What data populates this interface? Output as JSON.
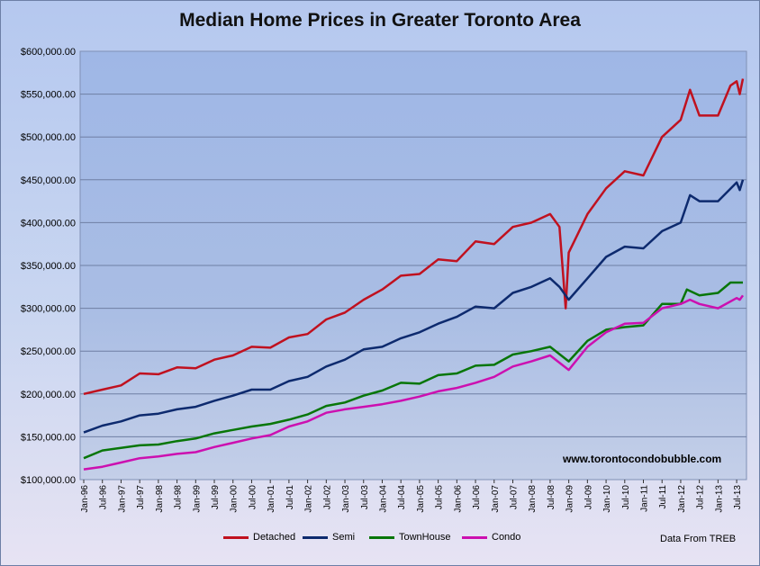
{
  "chart_data": {
    "type": "line",
    "title": "Median Home Prices in Greater Toronto Area",
    "xlabel": "",
    "ylabel": "",
    "ylim": [
      100000,
      600000
    ],
    "y_ticks": [
      "$100,000.00",
      "$150,000.00",
      "$200,000.00",
      "$250,000.00",
      "$300,000.00",
      "$350,000.00",
      "$400,000.00",
      "$450,000.00",
      "$500,000.00",
      "$550,000.00",
      "$600,000.00"
    ],
    "x_ticks": [
      "Jan-96",
      "Jul-96",
      "Jan-97",
      "Jul-97",
      "Jan-98",
      "Jul-98",
      "Jan-99",
      "Jul-99",
      "Jan-00",
      "Jul-00",
      "Jan-01",
      "Jul-01",
      "Jan-02",
      "Jul-02",
      "Jan-03",
      "Jul-03",
      "Jan-04",
      "Jul-04",
      "Jan-05",
      "Jul-05",
      "Jan-06",
      "Jul-06",
      "Jan-07",
      "Jul-07",
      "Jan-08",
      "Jul-08",
      "Jan-09",
      "Jul-09",
      "Jan-10",
      "Jul-10",
      "Jan-11",
      "Jul-11",
      "Jan-12",
      "Jul-12",
      "Jan-13",
      "Jul-13"
    ],
    "x_range": [
      "Jan-96",
      "Sep-13"
    ],
    "grid": "horizontal",
    "legend_position": "bottom",
    "series": [
      {
        "name": "Detached",
        "color": "#c0111f",
        "points": [
          [
            "Jan-96",
            200000
          ],
          [
            "Jul-96",
            205000
          ],
          [
            "Jan-97",
            210000
          ],
          [
            "Jul-97",
            224000
          ],
          [
            "Jan-98",
            223000
          ],
          [
            "Jul-98",
            231000
          ],
          [
            "Jan-99",
            230000
          ],
          [
            "Jul-99",
            240000
          ],
          [
            "Jan-00",
            245000
          ],
          [
            "Jul-00",
            255000
          ],
          [
            "Jan-01",
            254000
          ],
          [
            "Jul-01",
            266000
          ],
          [
            "Jan-02",
            270000
          ],
          [
            "Jul-02",
            287000
          ],
          [
            "Jan-03",
            295000
          ],
          [
            "Jul-03",
            310000
          ],
          [
            "Jan-04",
            322000
          ],
          [
            "Jul-04",
            338000
          ],
          [
            "Jan-05",
            340000
          ],
          [
            "Jul-05",
            357000
          ],
          [
            "Jan-06",
            355000
          ],
          [
            "Jul-06",
            378000
          ],
          [
            "Jan-07",
            375000
          ],
          [
            "Jul-07",
            395000
          ],
          [
            "Jan-08",
            400000
          ],
          [
            "Jul-08",
            410000
          ],
          [
            "Oct-08",
            395000
          ],
          [
            "Dec-08",
            300000
          ],
          [
            "Jan-09",
            365000
          ],
          [
            "Jul-09",
            410000
          ],
          [
            "Jan-10",
            440000
          ],
          [
            "Jul-10",
            460000
          ],
          [
            "Jan-11",
            455000
          ],
          [
            "Jul-11",
            500000
          ],
          [
            "Jan-12",
            520000
          ],
          [
            "Apr-12",
            555000
          ],
          [
            "Jul-12",
            525000
          ],
          [
            "Jan-13",
            525000
          ],
          [
            "May-13",
            560000
          ],
          [
            "Jul-13",
            565000
          ],
          [
            "Aug-13",
            550000
          ],
          [
            "Sep-13",
            568000
          ]
        ]
      },
      {
        "name": "Semi",
        "color": "#0d2a6e",
        "points": [
          [
            "Jan-96",
            155000
          ],
          [
            "Jul-96",
            163000
          ],
          [
            "Jan-97",
            168000
          ],
          [
            "Jul-97",
            175000
          ],
          [
            "Jan-98",
            177000
          ],
          [
            "Jul-98",
            182000
          ],
          [
            "Jan-99",
            185000
          ],
          [
            "Jul-99",
            192000
          ],
          [
            "Jan-00",
            198000
          ],
          [
            "Jul-00",
            205000
          ],
          [
            "Jan-01",
            205000
          ],
          [
            "Jul-01",
            215000
          ],
          [
            "Jan-02",
            220000
          ],
          [
            "Jul-02",
            232000
          ],
          [
            "Jan-03",
            240000
          ],
          [
            "Jul-03",
            252000
          ],
          [
            "Jan-04",
            255000
          ],
          [
            "Jul-04",
            265000
          ],
          [
            "Jan-05",
            272000
          ],
          [
            "Jul-05",
            282000
          ],
          [
            "Jan-06",
            290000
          ],
          [
            "Jul-06",
            302000
          ],
          [
            "Jan-07",
            300000
          ],
          [
            "Jul-07",
            318000
          ],
          [
            "Jan-08",
            325000
          ],
          [
            "Jul-08",
            335000
          ],
          [
            "Oct-08",
            325000
          ],
          [
            "Jan-09",
            310000
          ],
          [
            "Jul-09",
            335000
          ],
          [
            "Jan-10",
            360000
          ],
          [
            "Jul-10",
            372000
          ],
          [
            "Jan-11",
            370000
          ],
          [
            "Jul-11",
            390000
          ],
          [
            "Jan-12",
            400000
          ],
          [
            "Apr-12",
            432000
          ],
          [
            "Jul-12",
            425000
          ],
          [
            "Jan-13",
            425000
          ],
          [
            "Jul-13",
            447000
          ],
          [
            "Aug-13",
            438000
          ],
          [
            "Sep-13",
            450000
          ]
        ]
      },
      {
        "name": "TownHouse",
        "color": "#087608",
        "points": [
          [
            "Jan-96",
            125000
          ],
          [
            "Jul-96",
            134000
          ],
          [
            "Jan-97",
            137000
          ],
          [
            "Jul-97",
            140000
          ],
          [
            "Jan-98",
            141000
          ],
          [
            "Jul-98",
            145000
          ],
          [
            "Jan-99",
            148000
          ],
          [
            "Jul-99",
            154000
          ],
          [
            "Jan-00",
            158000
          ],
          [
            "Jul-00",
            162000
          ],
          [
            "Jan-01",
            165000
          ],
          [
            "Jul-01",
            170000
          ],
          [
            "Jan-02",
            176000
          ],
          [
            "Jul-02",
            186000
          ],
          [
            "Jan-03",
            190000
          ],
          [
            "Jul-03",
            198000
          ],
          [
            "Jan-04",
            204000
          ],
          [
            "Jul-04",
            213000
          ],
          [
            "Jan-05",
            212000
          ],
          [
            "Jul-05",
            222000
          ],
          [
            "Jan-06",
            224000
          ],
          [
            "Jul-06",
            233000
          ],
          [
            "Jan-07",
            234000
          ],
          [
            "Jul-07",
            246000
          ],
          [
            "Jan-08",
            250000
          ],
          [
            "Jul-08",
            255000
          ],
          [
            "Jan-09",
            238000
          ],
          [
            "Jul-09",
            262000
          ],
          [
            "Jan-10",
            275000
          ],
          [
            "Jul-10",
            278000
          ],
          [
            "Jan-11",
            280000
          ],
          [
            "Jul-11",
            305000
          ],
          [
            "Jan-12",
            305000
          ],
          [
            "Mar-12",
            322000
          ],
          [
            "Jul-12",
            315000
          ],
          [
            "Jan-13",
            318000
          ],
          [
            "May-13",
            330000
          ],
          [
            "Sep-13",
            330000
          ]
        ]
      },
      {
        "name": "Condo",
        "color": "#cc10b0",
        "points": [
          [
            "Jan-96",
            112000
          ],
          [
            "Jul-96",
            115000
          ],
          [
            "Jan-97",
            120000
          ],
          [
            "Jul-97",
            125000
          ],
          [
            "Jan-98",
            127000
          ],
          [
            "Jul-98",
            130000
          ],
          [
            "Jan-99",
            132000
          ],
          [
            "Jul-99",
            138000
          ],
          [
            "Jan-00",
            143000
          ],
          [
            "Jul-00",
            148000
          ],
          [
            "Jan-01",
            152000
          ],
          [
            "Jul-01",
            162000
          ],
          [
            "Jan-02",
            168000
          ],
          [
            "Jul-02",
            178000
          ],
          [
            "Jan-03",
            182000
          ],
          [
            "Jul-03",
            185000
          ],
          [
            "Jan-04",
            188000
          ],
          [
            "Jul-04",
            192000
          ],
          [
            "Jan-05",
            197000
          ],
          [
            "Jul-05",
            203000
          ],
          [
            "Jan-06",
            207000
          ],
          [
            "Jul-06",
            213000
          ],
          [
            "Jan-07",
            220000
          ],
          [
            "Jul-07",
            232000
          ],
          [
            "Jan-08",
            238000
          ],
          [
            "Jul-08",
            245000
          ],
          [
            "Jan-09",
            228000
          ],
          [
            "Jul-09",
            255000
          ],
          [
            "Jan-10",
            272000
          ],
          [
            "Jul-10",
            282000
          ],
          [
            "Jan-11",
            283000
          ],
          [
            "Jul-11",
            300000
          ],
          [
            "Jan-12",
            305000
          ],
          [
            "Apr-12",
            310000
          ],
          [
            "Jul-12",
            305000
          ],
          [
            "Jan-13",
            300000
          ],
          [
            "Jul-13",
            312000
          ],
          [
            "Aug-13",
            310000
          ],
          [
            "Sep-13",
            315000
          ]
        ]
      }
    ]
  },
  "watermark": "www.torontocondobubble.com",
  "credit": "Data From TREB"
}
